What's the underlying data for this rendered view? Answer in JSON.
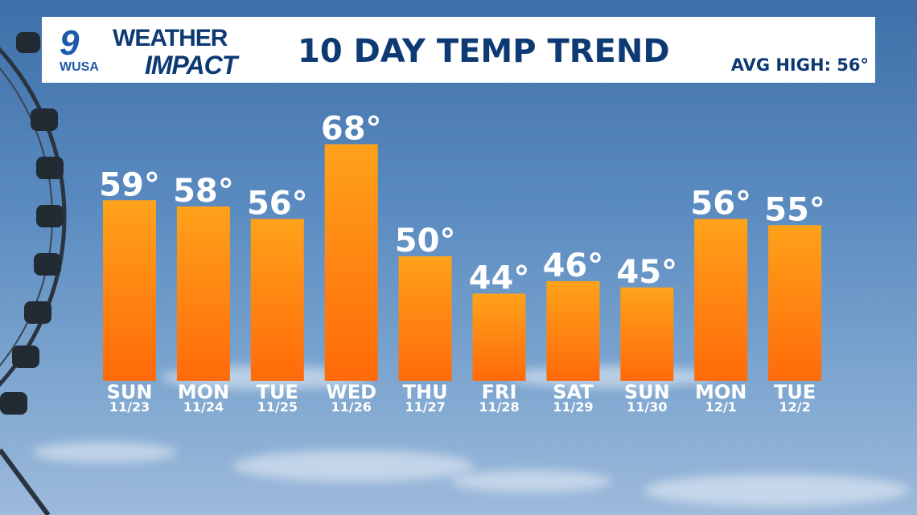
{
  "header": {
    "logo_number": "9",
    "logo_station": "WUSA",
    "brand_line1": "WEATHER",
    "brand_line2": "IMPACT",
    "title": "10 DAY TEMP TREND",
    "avg_high": "AVG HIGH: 56°"
  },
  "colors": {
    "bar_top": "#ffa21a",
    "bar_bottom": "#ff6a0a",
    "header_text": "#0e3a74",
    "logo": "#1c5bab"
  },
  "chart_data": {
    "type": "bar",
    "title": "10 DAY TEMP TREND",
    "categories": [
      "SUN",
      "MON",
      "TUE",
      "WED",
      "THU",
      "FRI",
      "SAT",
      "SUN",
      "MON",
      "TUE"
    ],
    "dates": [
      "11/23",
      "11/24",
      "11/25",
      "11/26",
      "11/27",
      "11/28",
      "11/29",
      "11/30",
      "12/1",
      "12/2"
    ],
    "values": [
      59,
      58,
      56,
      68,
      50,
      44,
      46,
      45,
      56,
      55
    ],
    "value_suffix": "°",
    "ylim": [
      30,
      70
    ],
    "grid": false
  }
}
